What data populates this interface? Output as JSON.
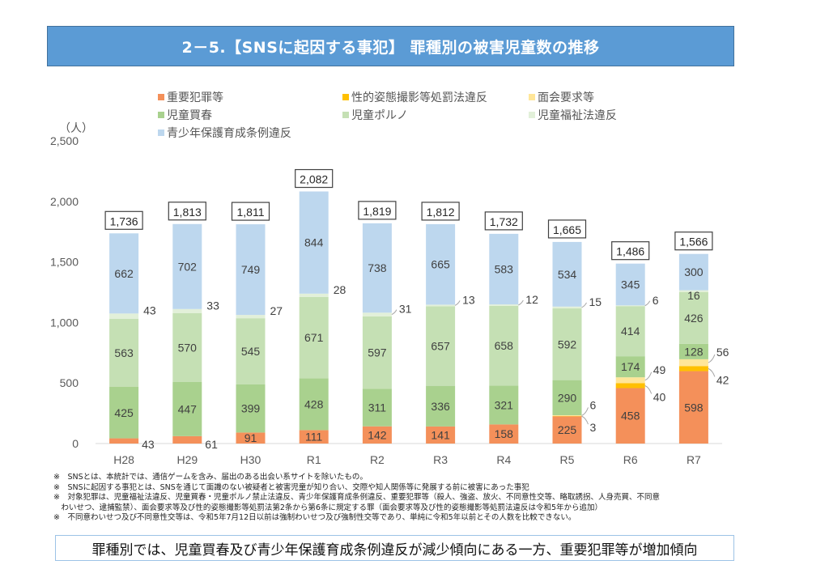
{
  "title": "2－5.【SNSに起因する事犯】 罪種別の被害児童数の推移",
  "unit_label": "（人）",
  "chart_data": {
    "type": "bar",
    "stacked": true,
    "title": "罪種別の被害児童数の推移",
    "xlabel": "",
    "ylabel": "（人）",
    "ylim": [
      0,
      2500
    ],
    "yticks": [
      0,
      500,
      1000,
      1500,
      2000,
      2500
    ],
    "ytick_labels": [
      "0",
      "500",
      "1,000",
      "1,500",
      "2,000",
      "2,500"
    ],
    "grid": false,
    "legend_position": "top",
    "categories": [
      "H28",
      "H29",
      "H30",
      "R1",
      "R2",
      "R3",
      "R4",
      "R5",
      "R6",
      "R7"
    ],
    "series": [
      {
        "name": "重要犯罪等",
        "color": "#f4905a",
        "values": [
          43,
          61,
          91,
          111,
          142,
          141,
          158,
          225,
          458,
          598
        ]
      },
      {
        "name": "性的姿態撮影等処罰法違反",
        "color": "#ffc000",
        "values": [
          0,
          0,
          0,
          0,
          0,
          0,
          0,
          3,
          40,
          42
        ]
      },
      {
        "name": "面会要求等",
        "color": "#ffe699",
        "values": [
          0,
          0,
          0,
          0,
          0,
          0,
          0,
          6,
          49,
          56
        ]
      },
      {
        "name": "児童買春",
        "color": "#a9d18e",
        "values": [
          425,
          447,
          399,
          428,
          311,
          336,
          321,
          290,
          174,
          128
        ]
      },
      {
        "name": "児童ポルノ",
        "color": "#c5e0b4",
        "values": [
          563,
          570,
          545,
          671,
          597,
          657,
          658,
          592,
          414,
          426
        ]
      },
      {
        "name": "児童福祉法違反",
        "color": "#e2f0d9",
        "values": [
          43,
          33,
          27,
          28,
          31,
          13,
          12,
          15,
          6,
          16
        ]
      },
      {
        "name": "青少年保護育成条例違反",
        "color": "#bdd7ee",
        "values": [
          662,
          702,
          749,
          844,
          738,
          665,
          583,
          534,
          345,
          300
        ]
      }
    ],
    "totals": [
      1736,
      1813,
      1811,
      2082,
      1819,
      1812,
      1732,
      1665,
      1486,
      1566
    ],
    "total_labels": [
      "1,736",
      "1,813",
      "1,811",
      "2,082",
      "1,819",
      "1,812",
      "1,732",
      "1,665",
      "1,486",
      "1,566"
    ]
  },
  "legend": [
    {
      "label": "重要犯罪等",
      "color": "#f4905a"
    },
    {
      "label": "性的姿態撮影等処罰法違反",
      "color": "#ffc000"
    },
    {
      "label": "面会要求等",
      "color": "#ffe699"
    },
    {
      "label": "児童買春",
      "color": "#a9d18e"
    },
    {
      "label": "児童ポルノ",
      "color": "#c5e0b4"
    },
    {
      "label": "児童福祉法違反",
      "color": "#e2f0d9"
    },
    {
      "label": "青少年保護育成条例違反",
      "color": "#bdd7ee"
    }
  ],
  "notes": [
    "※　SNSとは、本統計では、通信ゲームを含み、届出のある出会い系サイトを除いたもの。",
    "※　SNSに起因する事犯とは、SNSを通じて面識のない被疑者と被害児童が知り合い、交際や知人関係等に発展する前に被害にあった事犯",
    "※　対象犯罪は、児童福祉法違反、児童買春・児童ポルノ禁止法違反、青少年保護育成条例違反、重要犯罪等（殺人、強盗、放火、不同意性交等、略取誘拐、人身売買、不同意",
    "　わいせつ、逮捕監禁）、面会要求等及び性的姿態撮影等処罰法第2条から第6条に規定する罪（面会要求等及び性的姿態撮影等処罰法違反は令和5年から追加）",
    "※　不同意わいせつ及び不同意性交等は、令和5年7月12日以前は強制わいせつ及び強制性交等であり、単純に令和5年以前とその人数を比較できない。"
  ],
  "conclusion": "罪種別では、児童買春及び青少年保護育成条例違反が減少傾向にある一方、重要犯罪等が増加傾向"
}
